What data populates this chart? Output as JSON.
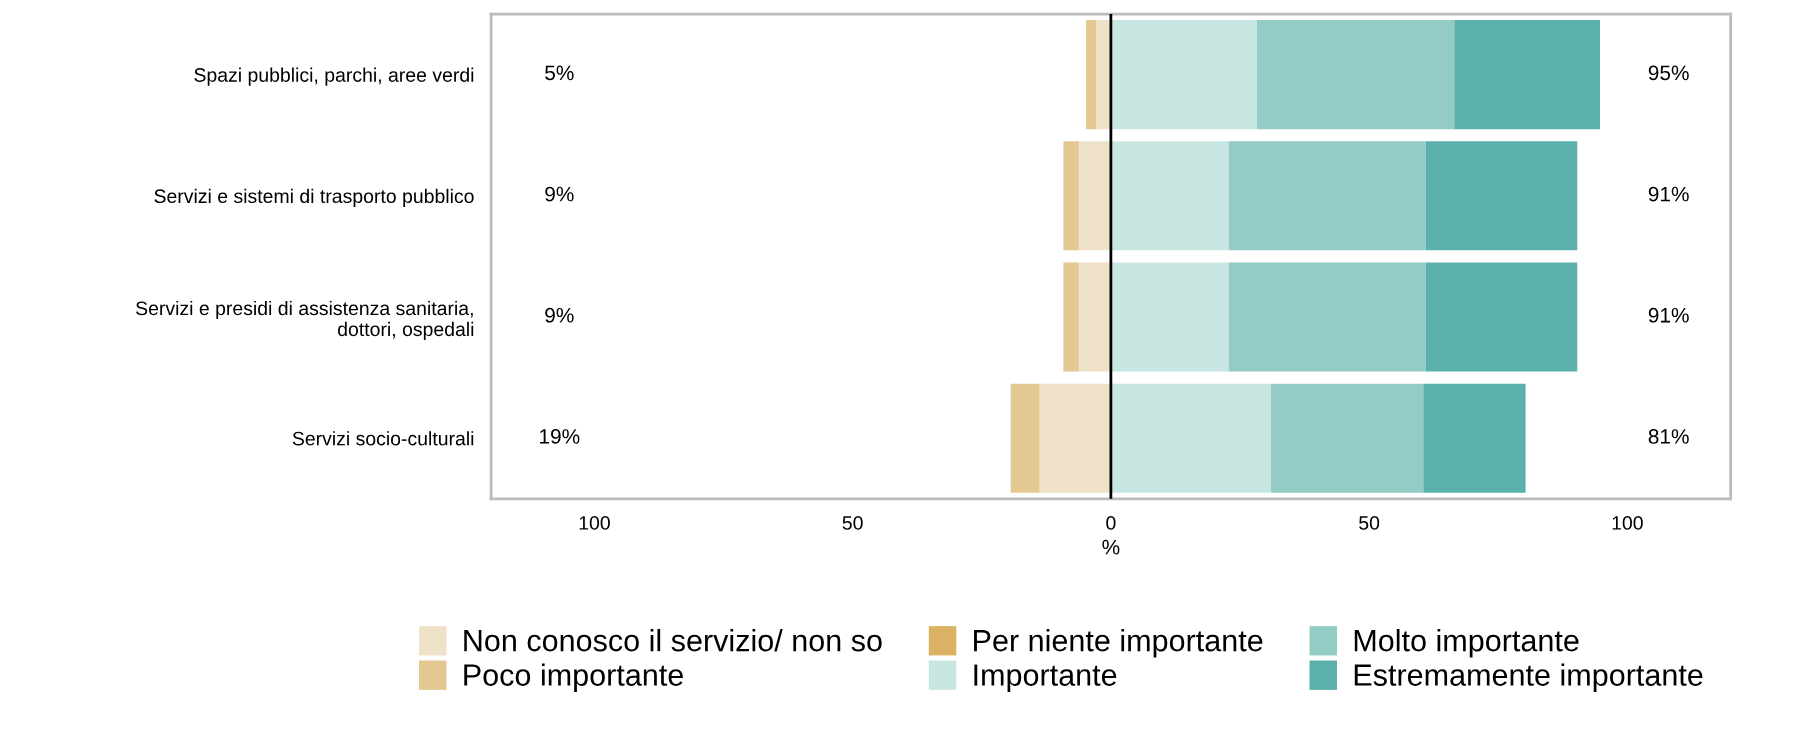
{
  "chart_data": {
    "type": "bar",
    "orientation": "horizontal",
    "stacked": true,
    "categories": [
      "Spazi pubblici, parchi, aree verdi",
      "Servizi e sistemi di trasporto pubblico",
      "Servizi e presidi di assistenza sanitaria,\ndottori, ospedali",
      "Servizi socio-culturali"
    ],
    "series": [
      {
        "name": "Non conosco il servizio/ non so",
        "color": "#f0e2c8",
        "values": [
          -2.9,
          -6.2,
          -6.2,
          -13.8
        ]
      },
      {
        "name": "Poco importante",
        "color": "#e3c891",
        "values": [
          -1.9,
          -3.0,
          -3.0,
          -5.6
        ]
      },
      {
        "name": "Per niente importante",
        "color": "#dbb263",
        "values": [
          0,
          0,
          0,
          0
        ]
      },
      {
        "name": "Importante",
        "color": "#c8e6e1",
        "values": [
          28.3,
          22.8,
          22.8,
          31.0
        ]
      },
      {
        "name": "Molto importante",
        "color": "#92ccc5",
        "values": [
          38.2,
          38.2,
          38.2,
          29.5
        ]
      },
      {
        "name": "Estremamente importante",
        "color": "#5ab1ab",
        "values": [
          28.2,
          29.3,
          29.3,
          19.8
        ]
      }
    ],
    "xlabel": "%",
    "xlim": [
      -120,
      120
    ],
    "xticks": [
      {
        "value": -100,
        "label": "100"
      },
      {
        "value": -50,
        "label": "50"
      },
      0,
      50,
      100
    ],
    "ref_lines": [
      {
        "axis": "x",
        "value": 0,
        "color": "#000000",
        "line_style": "solid"
      }
    ],
    "annotations": [
      "5%",
      "95%",
      "9%",
      "91%",
      "9%",
      "91%",
      "19%",
      "81%"
    ],
    "grid": false,
    "legend": "bottom"
  }
}
